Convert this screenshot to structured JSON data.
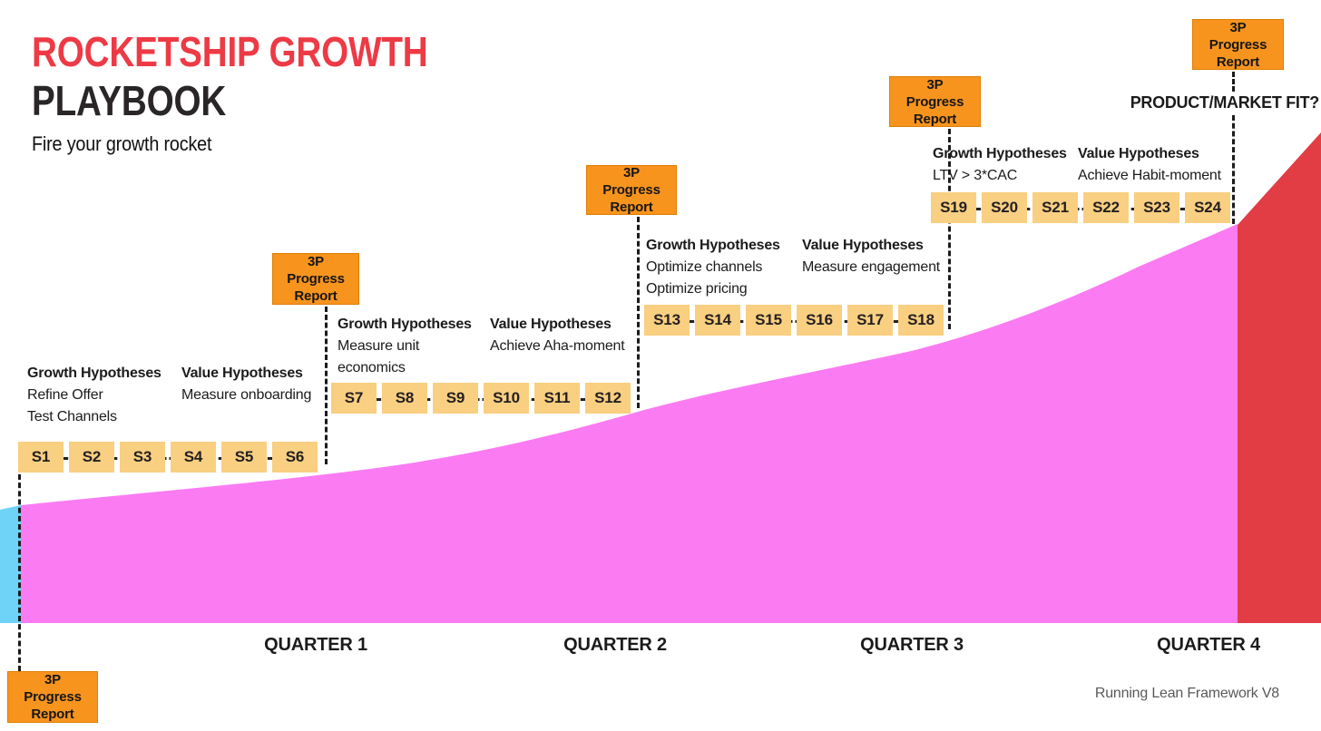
{
  "header": {
    "title_line1": "ROCKETSHIP GROWTH",
    "title_line2": "PLAYBOOK",
    "tagline": "Fire your growth rocket"
  },
  "colors": {
    "title_red": "#ED3A45",
    "title_dark": "#2A2627",
    "area_magenta": "#FB7BF3",
    "area_red": "#E23C45",
    "area_blue": "#6ED3F7",
    "milestone_orange": "#F7941E",
    "sprint_amber": "#F9CF81"
  },
  "milestones": {
    "label": "3P Progress Report"
  },
  "product_market_fit_label": "PRODUCT/MARKET FIT?",
  "credit": "Running Lean Framework V8",
  "quarters": [
    {
      "label": "QUARTER 1",
      "growth": {
        "title": "Growth Hypotheses",
        "lines": [
          "Refine Offer",
          "Test Channels"
        ]
      },
      "value": {
        "title": "Value Hypotheses",
        "lines": [
          "Measure onboarding"
        ]
      },
      "sprints": [
        "S1",
        "S2",
        "S3",
        "S4",
        "S5",
        "S6"
      ]
    },
    {
      "label": "QUARTER 2",
      "growth": {
        "title": "Growth Hypotheses",
        "lines": [
          "Measure unit",
          "economics"
        ]
      },
      "value": {
        "title": "Value Hypotheses",
        "lines": [
          "Achieve Aha-moment"
        ]
      },
      "sprints": [
        "S7",
        "S8",
        "S9",
        "S10",
        "S11",
        "S12"
      ]
    },
    {
      "label": "QUARTER 3",
      "growth": {
        "title": "Growth Hypotheses",
        "lines": [
          "Optimize channels",
          "Optimize pricing"
        ]
      },
      "value": {
        "title": "Value Hypotheses",
        "lines": [
          "Measure engagement"
        ]
      },
      "sprints": [
        "S13",
        "S14",
        "S15",
        "S16",
        "S17",
        "S18"
      ]
    },
    {
      "label": "QUARTER 4",
      "growth": {
        "title": "Growth Hypotheses",
        "lines": [
          "LTV > 3*CAC"
        ]
      },
      "value": {
        "title": "Value Hypotheses",
        "lines": [
          "Achieve Habit-moment"
        ]
      },
      "sprints": [
        "S19",
        "S20",
        "S21",
        "S22",
        "S23",
        "S24"
      ]
    }
  ]
}
